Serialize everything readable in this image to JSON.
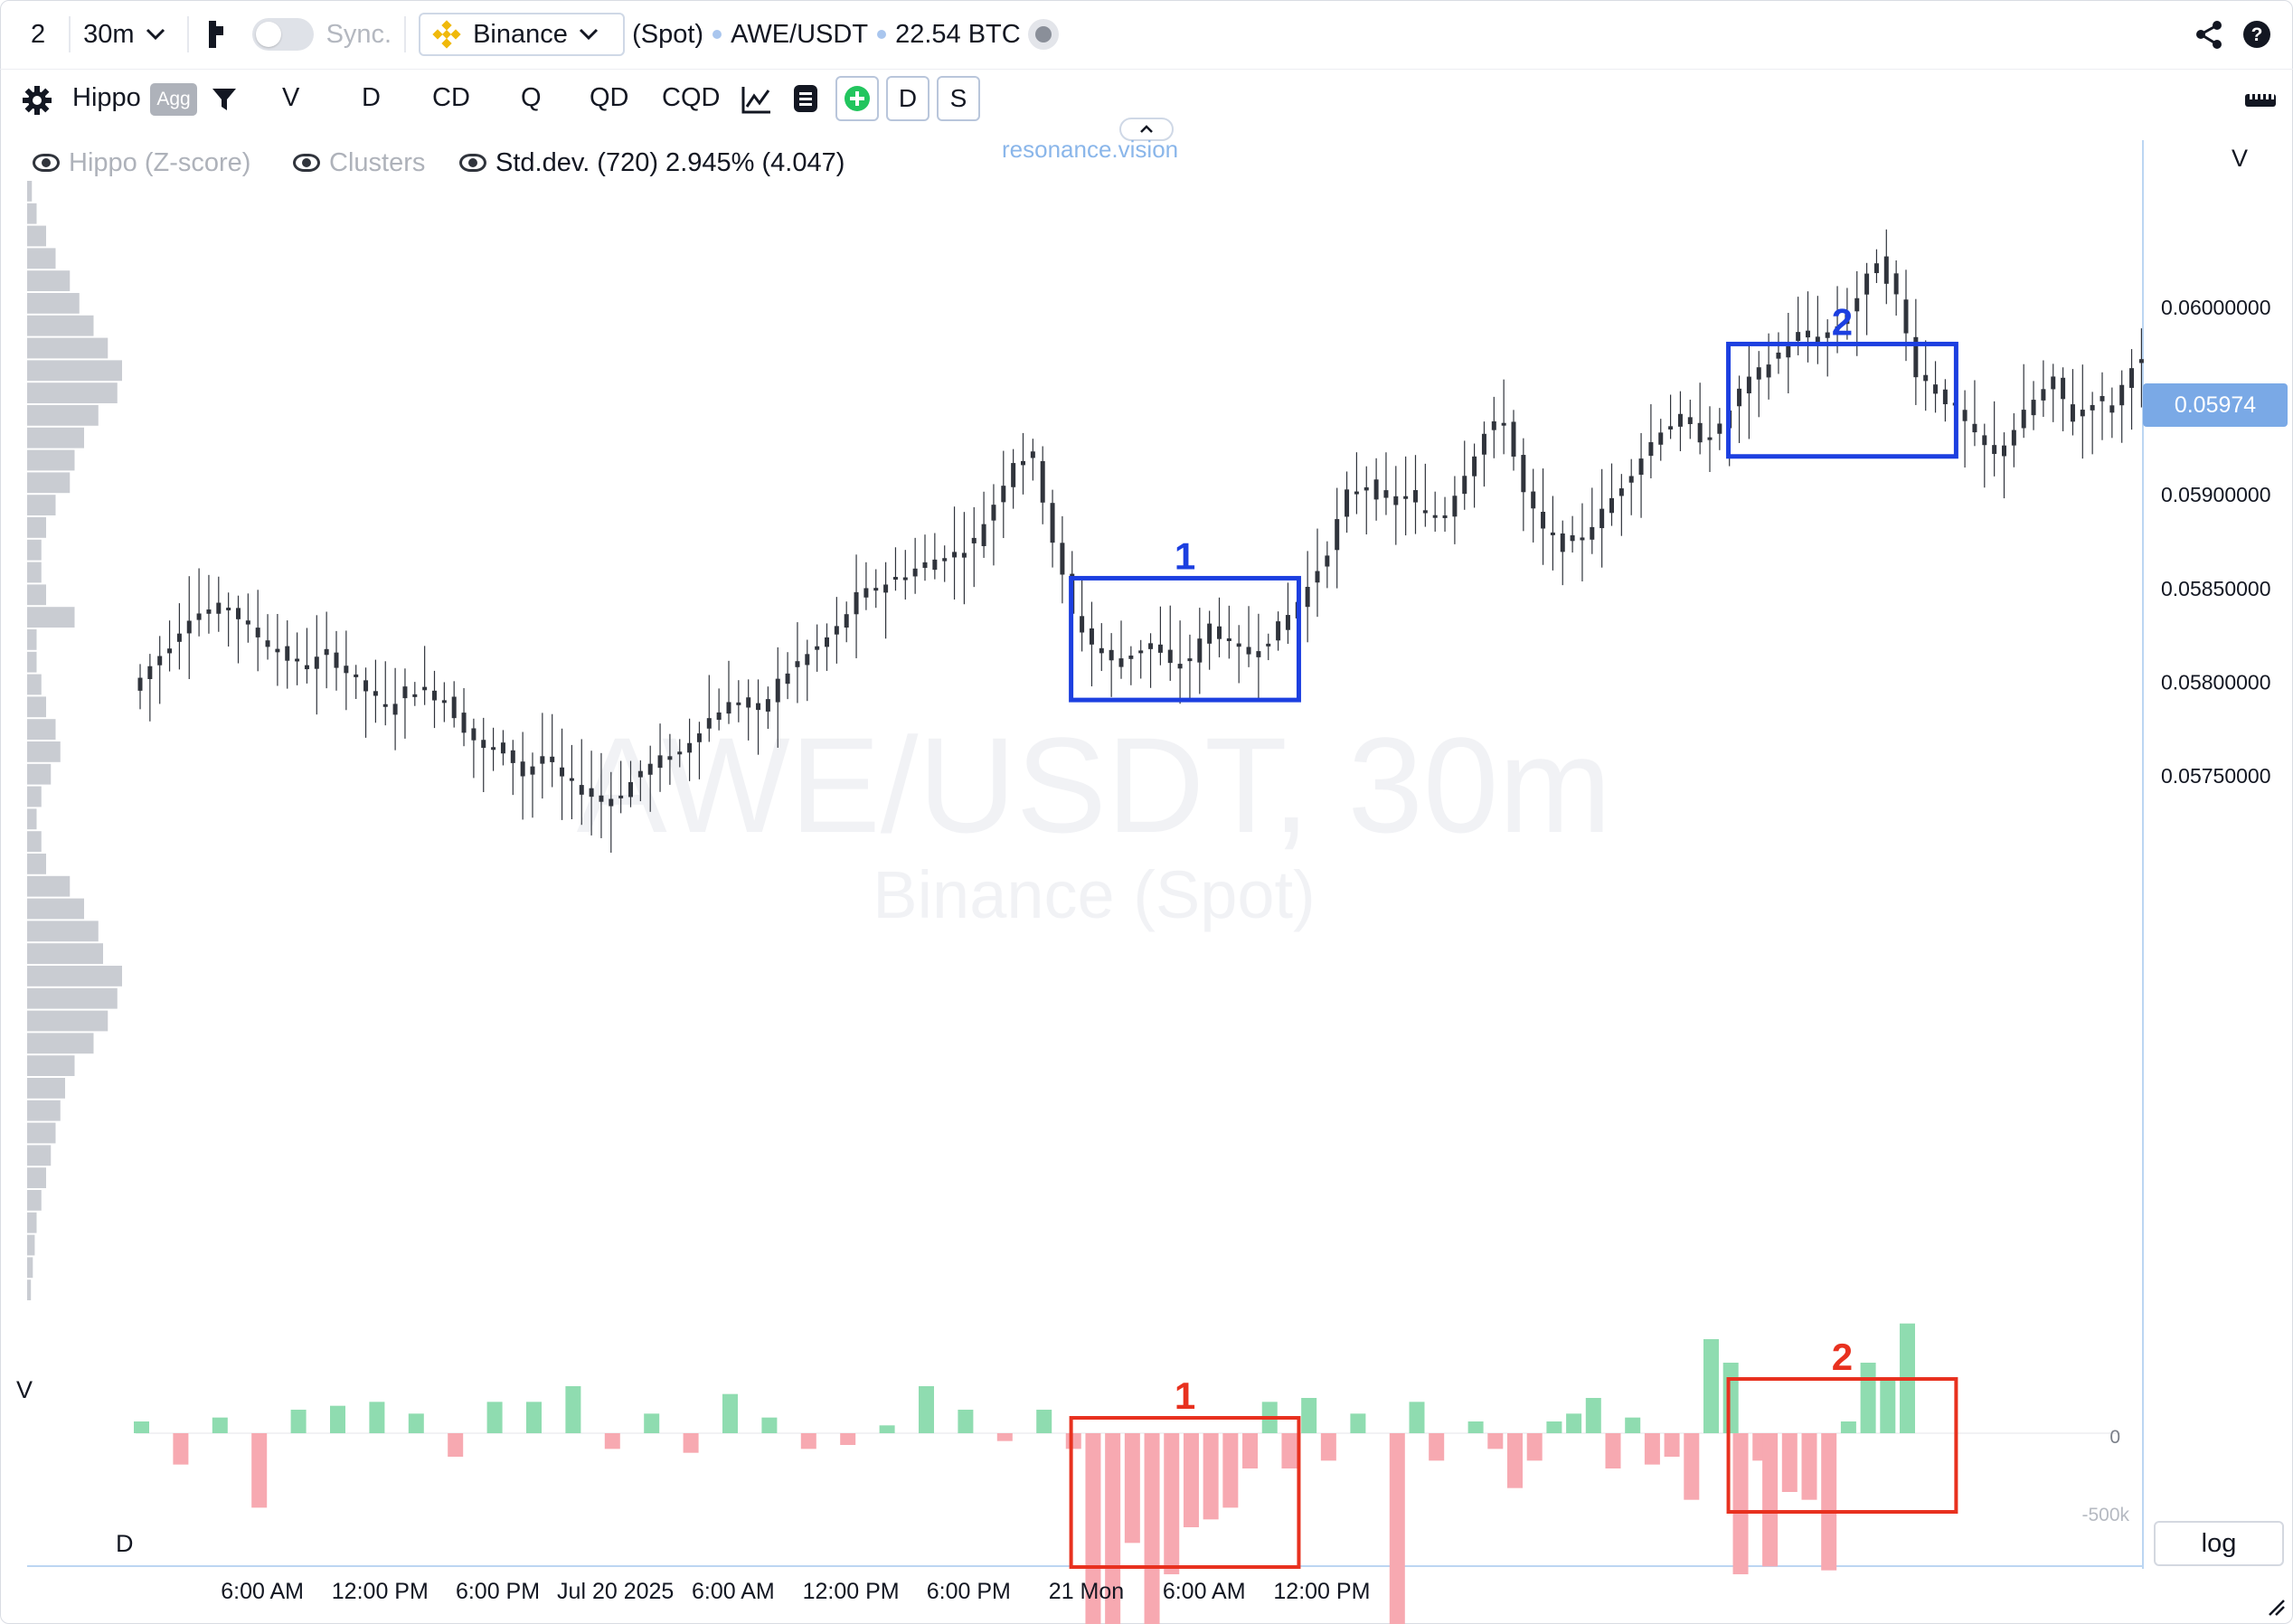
{
  "toolbar": {
    "layout_num": "2",
    "timeframe": "30m",
    "sync_label": "Sync.",
    "exchange": "Binance",
    "market": "(Spot)",
    "pair": "AWE/USDT",
    "volume": "22.54 BTC"
  },
  "toolbar2": {
    "indicator": "Hippo",
    "agg_badge": "Agg",
    "tabs": [
      "V",
      "D",
      "CD",
      "Q",
      "QD",
      "CQD"
    ],
    "d_button": "D",
    "s_button": "S"
  },
  "legend": {
    "hippo": "Hippo (Z-score)",
    "clusters": "Clusters",
    "stddev": "Std.dev. (720) 2.945% (4.047)"
  },
  "brand": "resonance.vision",
  "watermark": {
    "main": "AWE/USDT, 30m",
    "sub": "Binance (Spot)"
  },
  "pane_labels": {
    "v_top_left": "V",
    "v_right": "V",
    "d_label": "D"
  },
  "price_axis": {
    "labels": [
      "0.06000000",
      "0.05950000",
      "0.05900000",
      "0.05850000",
      "0.05800000",
      "0.05750000"
    ],
    "current": "0.05974"
  },
  "delta_axis": {
    "zero": "0",
    "bottom": "-500k"
  },
  "time_axis": [
    "6:00 AM",
    "12:00 PM",
    "6:00 PM",
    "Jul 20 2025",
    "6:00 AM",
    "12:00 PM",
    "6:00 PM",
    "21 Mon",
    "6:00 AM",
    "12:00 PM"
  ],
  "log_button": "log",
  "annotations": {
    "blue": [
      "1",
      "2"
    ],
    "red": [
      "1",
      "2"
    ]
  },
  "colors": {
    "blue_box": "#1c3fe0",
    "red_box": "#e8311f",
    "delta_pos": "#8fdcb0",
    "delta_neg": "#f7a9b1",
    "candle": "#30343c",
    "price_tag": "#7aa9e6"
  },
  "chart_data": {
    "type": "candlestick",
    "timeframe": "30m",
    "y_range": [
      0.0571,
      0.0609
    ],
    "price_path": [
      [
        0,
        0.05795
      ],
      [
        2,
        0.05808
      ],
      [
        4,
        0.0582
      ],
      [
        6,
        0.05835
      ],
      [
        8,
        0.05838
      ],
      [
        10,
        0.0584
      ],
      [
        12,
        0.05828
      ],
      [
        14,
        0.0582
      ],
      [
        16,
        0.05812
      ],
      [
        18,
        0.05808
      ],
      [
        20,
        0.05815
      ],
      [
        22,
        0.05805
      ],
      [
        24,
        0.05795
      ],
      [
        26,
        0.05785
      ],
      [
        28,
        0.05795
      ],
      [
        30,
        0.05795
      ],
      [
        32,
        0.0579
      ],
      [
        34,
        0.05775
      ],
      [
        36,
        0.05763
      ],
      [
        38,
        0.05765
      ],
      [
        40,
        0.0575
      ],
      [
        42,
        0.0576
      ],
      [
        44,
        0.05748
      ],
      [
        46,
        0.05742
      ],
      [
        48,
        0.05736
      ],
      [
        50,
        0.0574
      ],
      [
        52,
        0.05752
      ],
      [
        54,
        0.05758
      ],
      [
        56,
        0.05762
      ],
      [
        58,
        0.05775
      ],
      [
        60,
        0.05785
      ],
      [
        62,
        0.0579
      ],
      [
        64,
        0.05782
      ],
      [
        66,
        0.058
      ],
      [
        68,
        0.0581
      ],
      [
        70,
        0.05818
      ],
      [
        72,
        0.05828
      ],
      [
        74,
        0.05845
      ],
      [
        76,
        0.0585
      ],
      [
        78,
        0.05855
      ],
      [
        80,
        0.0586
      ],
      [
        82,
        0.05865
      ],
      [
        84,
        0.05868
      ],
      [
        86,
        0.05875
      ],
      [
        88,
        0.05895
      ],
      [
        90,
        0.05918
      ],
      [
        92,
        0.0592
      ],
      [
        94,
        0.05875
      ],
      [
        96,
        0.05835
      ],
      [
        98,
        0.0582
      ],
      [
        100,
        0.0581
      ],
      [
        102,
        0.05815
      ],
      [
        104,
        0.0582
      ],
      [
        106,
        0.05808
      ],
      [
        108,
        0.05812
      ],
      [
        110,
        0.0583
      ],
      [
        112,
        0.0582
      ],
      [
        114,
        0.05815
      ],
      [
        116,
        0.05823
      ],
      [
        118,
        0.05835
      ],
      [
        120,
        0.0585
      ],
      [
        122,
        0.0587
      ],
      [
        124,
        0.059
      ],
      [
        126,
        0.05905
      ],
      [
        128,
        0.05895
      ],
      [
        130,
        0.059
      ],
      [
        132,
        0.05888
      ],
      [
        134,
        0.0589
      ],
      [
        136,
        0.05912
      ],
      [
        138,
        0.05932
      ],
      [
        140,
        0.0594
      ],
      [
        142,
        0.059
      ],
      [
        144,
        0.0588
      ],
      [
        146,
        0.05872
      ],
      [
        148,
        0.05878
      ],
      [
        150,
        0.0589
      ],
      [
        152,
        0.05905
      ],
      [
        154,
        0.0592
      ],
      [
        156,
        0.05935
      ],
      [
        158,
        0.0594
      ],
      [
        160,
        0.0593
      ],
      [
        162,
        0.05935
      ],
      [
        164,
        0.05955
      ],
      [
        166,
        0.05965
      ],
      [
        168,
        0.05975
      ],
      [
        170,
        0.05985
      ],
      [
        172,
        0.05982
      ],
      [
        174,
        0.0599
      ],
      [
        176,
        0.06005
      ],
      [
        178,
        0.06025
      ],
      [
        180,
        0.06005
      ],
      [
        182,
        0.05965
      ],
      [
        184,
        0.05955
      ],
      [
        186,
        0.05945
      ],
      [
        188,
        0.0593
      ],
      [
        190,
        0.0592
      ],
      [
        192,
        0.05935
      ],
      [
        194,
        0.0595
      ],
      [
        196,
        0.0596
      ],
      [
        198,
        0.0594
      ],
      [
        200,
        0.0595
      ],
      [
        202,
        0.05945
      ],
      [
        204,
        0.0597
      ]
    ],
    "delta": [
      [
        0,
        15000
      ],
      [
        4,
        -40000
      ],
      [
        8,
        20000
      ],
      [
        12,
        -95000
      ],
      [
        16,
        30000
      ],
      [
        20,
        35000
      ],
      [
        24,
        40000
      ],
      [
        28,
        25000
      ],
      [
        32,
        -30000
      ],
      [
        36,
        40000
      ],
      [
        40,
        40000
      ],
      [
        44,
        60000
      ],
      [
        48,
        -20000
      ],
      [
        52,
        25000
      ],
      [
        56,
        -25000
      ],
      [
        60,
        50000
      ],
      [
        64,
        20000
      ],
      [
        68,
        -20000
      ],
      [
        72,
        -15000
      ],
      [
        76,
        10000
      ],
      [
        80,
        60000
      ],
      [
        84,
        30000
      ],
      [
        88,
        -10000
      ],
      [
        92,
        30000
      ],
      [
        95,
        -20000
      ],
      [
        97,
        -320000
      ],
      [
        99,
        -310000
      ],
      [
        101,
        -140000
      ],
      [
        103,
        -280000
      ],
      [
        105,
        -180000
      ],
      [
        107,
        -120000
      ],
      [
        109,
        -110000
      ],
      [
        111,
        -95000
      ],
      [
        113,
        -45000
      ],
      [
        115,
        40000
      ],
      [
        117,
        -45000
      ],
      [
        119,
        45000
      ],
      [
        121,
        -35000
      ],
      [
        124,
        25000
      ],
      [
        128,
        -330000
      ],
      [
        130,
        40000
      ],
      [
        132,
        -35000
      ],
      [
        136,
        15000
      ],
      [
        138,
        -20000
      ],
      [
        140,
        -70000
      ],
      [
        142,
        -35000
      ],
      [
        144,
        15000
      ],
      [
        146,
        25000
      ],
      [
        148,
        45000
      ],
      [
        150,
        -45000
      ],
      [
        152,
        20000
      ],
      [
        154,
        -40000
      ],
      [
        156,
        -30000
      ],
      [
        158,
        -85000
      ],
      [
        160,
        120000
      ],
      [
        162,
        90000
      ],
      [
        163,
        -180000
      ],
      [
        165,
        -35000
      ],
      [
        166,
        -170000
      ],
      [
        168,
        -75000
      ],
      [
        170,
        -85000
      ],
      [
        172,
        -175000
      ],
      [
        174,
        15000
      ],
      [
        176,
        90000
      ],
      [
        178,
        70000
      ],
      [
        180,
        140000
      ]
    ],
    "boxes": {
      "blue_1": {
        "label": "1",
        "t": [
          96,
          117
        ],
        "price": [
          0.0579,
          0.05855
        ]
      },
      "blue_2": {
        "label": "2",
        "t": [
          163,
          184
        ],
        "price": [
          0.0592,
          0.0598
        ]
      },
      "red_1": {
        "label": "1",
        "t": [
          96,
          117
        ]
      },
      "red_2": {
        "label": "2",
        "t": [
          163,
          184
        ]
      }
    },
    "volume_profile": {
      "levels_high": [
        0.0603,
        0.0575
      ],
      "profile": [
        5,
        10,
        20,
        30,
        45,
        55,
        70,
        85,
        100,
        95,
        75,
        60,
        50,
        45,
        30,
        20,
        15,
        15,
        20,
        50,
        10,
        10,
        15,
        20,
        30,
        35,
        25,
        15,
        10,
        15,
        20,
        45,
        60,
        75,
        80,
        100,
        95,
        85,
        70,
        50,
        40,
        35,
        30,
        25,
        20,
        15,
        10,
        8,
        6,
        4
      ]
    }
  }
}
